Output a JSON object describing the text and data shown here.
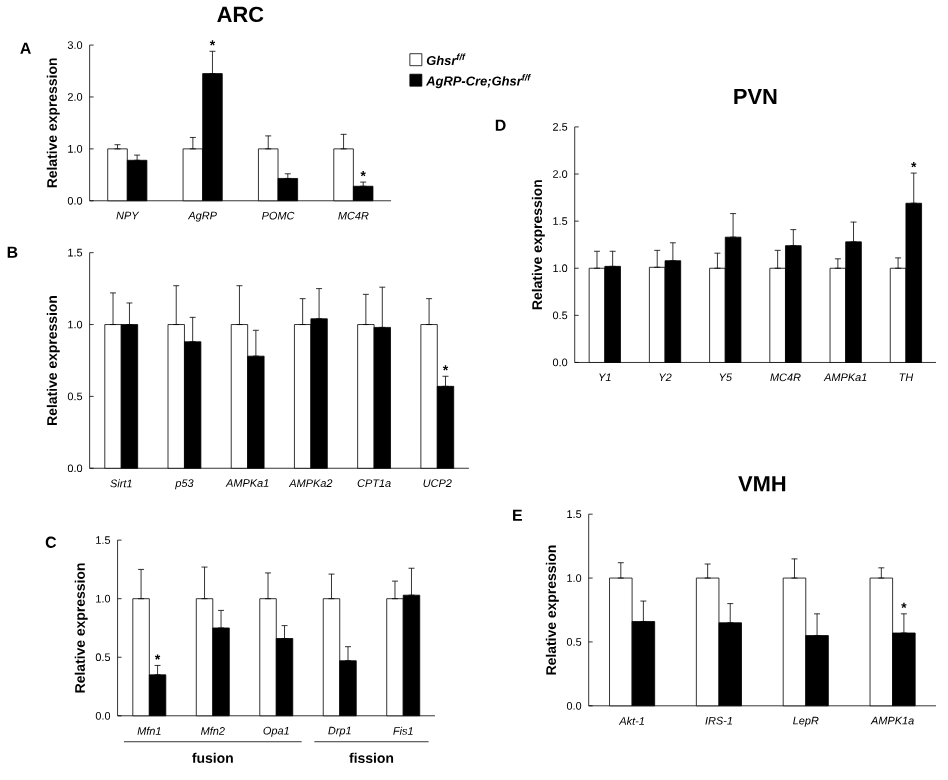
{
  "chart_data": [
    {
      "type": "bar",
      "title": "ARC",
      "ylabel": "Relative expression",
      "categories": [
        "NPY",
        "AgRP",
        "POMC",
        "MC4R"
      ],
      "series": [
        {
          "name": "Ghsr$^{f/f}$",
          "color": "#ffffff",
          "values": [
            1.0,
            1.0,
            1.0,
            1.0
          ],
          "errors": [
            [
              1.0,
              1.08
            ],
            [
              1.0,
              1.22
            ],
            [
              1.0,
              1.25
            ],
            [
              1.0,
              1.28
            ]
          ]
        },
        {
          "name": "AgRP-Cre;Ghsr$^{f/f}$",
          "color": "#000000",
          "values": [
            0.78,
            2.45,
            0.43,
            0.28
          ],
          "errors": [
            [
              0.78,
              0.88
            ],
            [
              2.45,
              2.88
            ],
            [
              0.43,
              0.52
            ],
            [
              0.28,
              0.36
            ]
          ]
        }
      ],
      "ylim": [
        0,
        3
      ],
      "yticks": [
        {
          "value": 0,
          "label": "0.0"
        },
        {
          "value": 1,
          "label": "1.0"
        },
        {
          "value": 2,
          "label": "2.0"
        },
        {
          "value": 3,
          "label": "3.0"
        }
      ],
      "legend": "right",
      "annotations": [
        "A",
        {
          "text": "*",
          "x": "AgRP",
          "y": 2.88
        },
        {
          "text": "*",
          "x": "MC4R",
          "y": 0.36
        }
      ]
    },
    {
      "type": "bar",
      "ylabel": "Relative expression",
      "categories": [
        "Sirt1",
        "p53",
        "AMPKa1",
        "AMPKa2",
        "CPT1a",
        "UCP2"
      ],
      "series": [
        {
          "color": "#ffffff",
          "values": [
            1.0,
            1.0,
            1.0,
            1.0,
            1.0,
            1.0
          ],
          "errors": [
            [
              1.0,
              1.22
            ],
            [
              1.0,
              1.27
            ],
            [
              1.0,
              1.27
            ],
            [
              1.0,
              1.18
            ],
            [
              1.0,
              1.21
            ],
            [
              1.0,
              1.18
            ]
          ]
        },
        {
          "color": "#000000",
          "values": [
            1.0,
            0.88,
            0.78,
            1.04,
            0.98,
            0.57
          ],
          "errors": [
            [
              1.0,
              1.15
            ],
            [
              0.88,
              1.05
            ],
            [
              0.78,
              0.96
            ],
            [
              1.04,
              1.25
            ],
            [
              0.98,
              1.26
            ],
            [
              0.57,
              0.64
            ]
          ]
        }
      ],
      "ylim": [
        0,
        1.5
      ],
      "yticks": [
        {
          "value": 0,
          "label": "0.0"
        },
        {
          "value": 0.5,
          "label": "0.5"
        },
        {
          "value": 1,
          "label": "1.0"
        },
        {
          "value": 1.5,
          "label": "1.5"
        }
      ],
      "annotations": [
        "B",
        {
          "text": "*",
          "x": "UCP2",
          "y": 0.64
        }
      ]
    },
    {
      "type": "bar",
      "ylabel": "Relative expression",
      "categories": [
        "Mfn1",
        "Mfn2",
        "Opa1",
        "Drp1",
        "Fis1"
      ],
      "series": [
        {
          "color": "#ffffff",
          "values": [
            1.0,
            1.0,
            1.0,
            1.0,
            1.0
          ],
          "errors": [
            [
              1.0,
              1.25
            ],
            [
              1.0,
              1.27
            ],
            [
              1.0,
              1.22
            ],
            [
              1.0,
              1.21
            ],
            [
              1.0,
              1.15
            ]
          ]
        },
        {
          "color": "#000000",
          "values": [
            0.35,
            0.75,
            0.66,
            0.47,
            1.03
          ],
          "errors": [
            [
              0.35,
              0.43
            ],
            [
              0.75,
              0.9
            ],
            [
              0.66,
              0.77
            ],
            [
              0.47,
              0.59
            ],
            [
              1.03,
              1.26
            ]
          ]
        }
      ],
      "ylim": [
        0,
        1.5
      ],
      "yticks": [
        {
          "value": 0,
          "label": "0.0"
        },
        {
          "value": 0.5,
          "label": "0.5"
        },
        {
          "value": 1,
          "label": "1.0"
        },
        {
          "value": 1.5,
          "label": "1.5"
        }
      ],
      "annotations": [
        "C",
        {
          "text": "*",
          "x": "Mfn1",
          "y": 0.43
        },
        "fusion",
        "fission"
      ]
    },
    {
      "type": "bar",
      "title": "PVN",
      "ylabel": "Relative expression",
      "categories": [
        "Y1",
        "Y2",
        "Y5",
        "MC4R",
        "AMPKa1",
        "TH"
      ],
      "series": [
        {
          "color": "#ffffff",
          "values": [
            1.0,
            1.01,
            1.0,
            1.0,
            1.0,
            1.0
          ],
          "errors": [
            [
              1.0,
              1.18
            ],
            [
              1.01,
              1.19
            ],
            [
              1.0,
              1.16
            ],
            [
              1.0,
              1.19
            ],
            [
              1.0,
              1.1
            ],
            [
              1.0,
              1.11
            ]
          ]
        },
        {
          "color": "#000000",
          "values": [
            1.02,
            1.08,
            1.33,
            1.24,
            1.28,
            1.69
          ],
          "errors": [
            [
              1.02,
              1.18
            ],
            [
              1.08,
              1.27
            ],
            [
              1.33,
              1.58
            ],
            [
              1.24,
              1.41
            ],
            [
              1.28,
              1.49
            ],
            [
              1.69,
              2.01
            ]
          ]
        }
      ],
      "ylim": [
        0,
        2.5
      ],
      "yticks": [
        {
          "value": 0,
          "label": "0.0"
        },
        {
          "value": 0.5,
          "label": "0.5"
        },
        {
          "value": 1,
          "label": "1.0"
        },
        {
          "value": 1.5,
          "label": "1.5"
        },
        {
          "value": 2,
          "label": "2.0"
        },
        {
          "value": 2.5,
          "label": "2.5"
        }
      ],
      "annotations": [
        "D",
        {
          "text": "*",
          "x": "TH",
          "y": 2.01
        }
      ]
    },
    {
      "type": "bar",
      "title": "VMH",
      "ylabel": "Relative expression",
      "categories": [
        "Akt-1",
        "IRS-1",
        "LepR",
        "AMPK1a"
      ],
      "series": [
        {
          "color": "#ffffff",
          "values": [
            1.0,
            1.0,
            1.0,
            1.0
          ],
          "errors": [
            [
              1.0,
              1.12
            ],
            [
              1.0,
              1.11
            ],
            [
              1.0,
              1.15
            ],
            [
              1.0,
              1.08
            ]
          ]
        },
        {
          "color": "#000000",
          "values": [
            0.66,
            0.65,
            0.55,
            0.57
          ],
          "errors": [
            [
              0.66,
              0.82
            ],
            [
              0.65,
              0.8
            ],
            [
              0.55,
              0.72
            ],
            [
              0.57,
              0.72
            ]
          ]
        }
      ],
      "ylim": [
        0,
        1.5
      ],
      "yticks": [
        {
          "value": 0,
          "label": "0.0"
        },
        {
          "value": 0.5,
          "label": "0.5"
        },
        {
          "value": 1,
          "label": "1.0"
        },
        {
          "value": 1.5,
          "label": "1.5"
        }
      ],
      "annotations": [
        "E",
        {
          "text": "*",
          "x": "AMPK1a",
          "y": 0.72
        }
      ]
    }
  ]
}
